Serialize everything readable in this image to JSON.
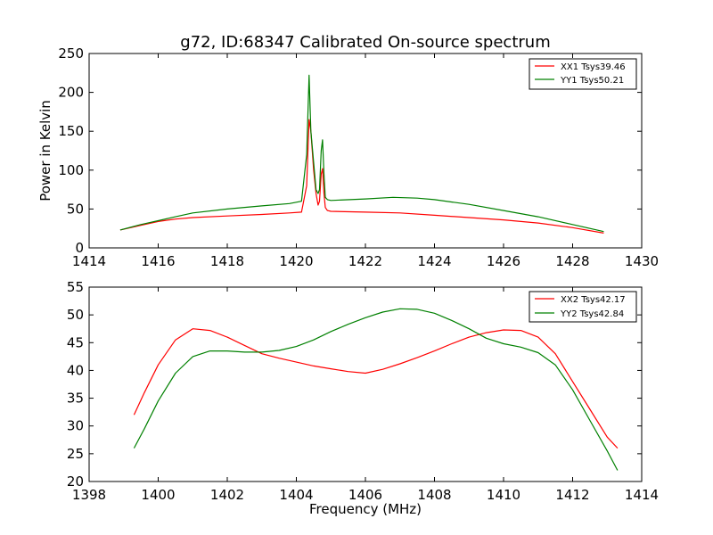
{
  "title": "g72, ID:68347 Calibrated On-source spectrum",
  "chart_data": [
    {
      "type": "line",
      "title": "g72, ID:68347 Calibrated On-source spectrum",
      "xlabel": "",
      "ylabel": "Power in Kelvin",
      "xlim": [
        1414,
        1430
      ],
      "ylim": [
        0,
        250
      ],
      "xticks": [
        "1414",
        "1416",
        "1418",
        "1420",
        "1422",
        "1424",
        "1426",
        "1428",
        "1430"
      ],
      "yticks": [
        "0",
        "50",
        "100",
        "150",
        "200",
        "250"
      ],
      "grid": false,
      "legend_position": "top-right",
      "series": [
        {
          "name": "XX1 Tsys39.46",
          "color": "#ff0000",
          "x": [
            1414.9,
            1415.5,
            1416.0,
            1416.5,
            1417.0,
            1418.0,
            1419.0,
            1419.8,
            1420.15,
            1420.3,
            1420.37,
            1420.42,
            1420.5,
            1420.57,
            1420.63,
            1420.67,
            1420.72,
            1420.76,
            1420.8,
            1420.84,
            1420.9,
            1421.0,
            1422.0,
            1423.0,
            1424.0,
            1425.0,
            1426.0,
            1427.0,
            1428.0,
            1428.9
          ],
          "y": [
            23,
            29,
            34,
            37,
            39,
            41,
            43,
            45,
            46,
            80,
            165,
            150,
            100,
            70,
            55,
            60,
            95,
            102,
            70,
            52,
            48,
            47,
            46,
            45,
            42,
            39,
            36,
            32,
            26,
            19
          ]
        },
        {
          "name": "YY1 Tsys50.21",
          "color": "#008000",
          "x": [
            1414.9,
            1415.5,
            1416.0,
            1416.5,
            1417.0,
            1418.0,
            1419.0,
            1419.8,
            1420.15,
            1420.3,
            1420.37,
            1420.42,
            1420.5,
            1420.57,
            1420.63,
            1420.67,
            1420.72,
            1420.76,
            1420.8,
            1420.84,
            1420.9,
            1421.0,
            1422.0,
            1422.8,
            1423.5,
            1424.0,
            1425.0,
            1426.0,
            1427.0,
            1428.0,
            1428.9
          ],
          "y": [
            23,
            30,
            35,
            40,
            45,
            50,
            54,
            57,
            60,
            120,
            222,
            150,
            110,
            75,
            70,
            75,
            125,
            139,
            95,
            65,
            62,
            61,
            63,
            65,
            64,
            62,
            56,
            48,
            40,
            30,
            21
          ]
        }
      ]
    },
    {
      "type": "line",
      "title": "",
      "xlabel": "Frequency (MHz)",
      "ylabel": "",
      "xlim": [
        1398,
        1414
      ],
      "ylim": [
        20,
        55
      ],
      "xticks": [
        "1398",
        "1400",
        "1402",
        "1404",
        "1406",
        "1408",
        "1410",
        "1412",
        "1414"
      ],
      "yticks": [
        "20",
        "25",
        "30",
        "35",
        "40",
        "45",
        "50",
        "55"
      ],
      "grid": false,
      "legend_position": "top-right",
      "series": [
        {
          "name": "XX2 Tsys42.17",
          "color": "#ff0000",
          "x": [
            1399.3,
            1399.6,
            1400.0,
            1400.5,
            1401.0,
            1401.5,
            1402.0,
            1402.5,
            1403.0,
            1403.5,
            1404.0,
            1404.5,
            1405.0,
            1405.5,
            1406.0,
            1406.5,
            1407.0,
            1407.5,
            1408.0,
            1408.5,
            1409.0,
            1409.5,
            1410.0,
            1410.5,
            1411.0,
            1411.5,
            1412.0,
            1412.5,
            1413.0,
            1413.3
          ],
          "y": [
            32,
            36,
            41,
            45.5,
            47.5,
            47.2,
            46,
            44.5,
            43,
            42.2,
            41.5,
            40.8,
            40.3,
            39.8,
            39.5,
            40.2,
            41.2,
            42.3,
            43.5,
            44.8,
            46,
            46.8,
            47.3,
            47.2,
            46,
            43,
            38,
            33,
            28,
            26
          ]
        },
        {
          "name": "YY2 Tsys42.84",
          "color": "#008000",
          "x": [
            1399.3,
            1399.6,
            1400.0,
            1400.5,
            1401.0,
            1401.5,
            1402.0,
            1402.5,
            1403.0,
            1403.5,
            1404.0,
            1404.5,
            1405.0,
            1405.5,
            1406.0,
            1406.5,
            1407.0,
            1407.5,
            1408.0,
            1408.5,
            1409.0,
            1409.5,
            1410.0,
            1410.5,
            1411.0,
            1411.5,
            1412.0,
            1412.5,
            1413.0,
            1413.3
          ],
          "y": [
            26,
            29.5,
            34.5,
            39.5,
            42.5,
            43.5,
            43.5,
            43.3,
            43.3,
            43.6,
            44.3,
            45.5,
            47,
            48.3,
            49.5,
            50.5,
            51.1,
            51,
            50.3,
            49,
            47.5,
            45.8,
            44.8,
            44.2,
            43.2,
            41,
            36.5,
            31,
            25.5,
            22
          ]
        }
      ]
    }
  ]
}
